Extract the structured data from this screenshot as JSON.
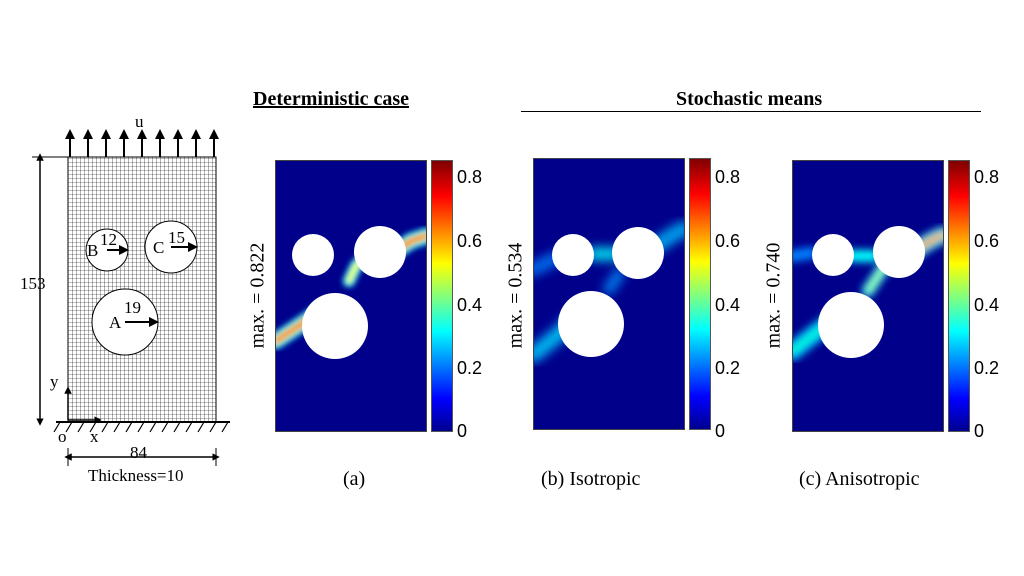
{
  "headers": {
    "deterministic": "Deterministic case",
    "stochastic": "Stochastic means"
  },
  "mesh": {
    "load_label": "u",
    "height": "153",
    "width": "84",
    "thickness": "Thickness=10",
    "origin": "o",
    "x_axis": "x",
    "y_axis": "y",
    "hole_A_label": "A",
    "hole_A_radius": "19",
    "hole_B_label": "B",
    "hole_B_radius": "12",
    "hole_C_label": "C",
    "hole_C_radius": "15"
  },
  "panels": [
    {
      "caption": "(a)",
      "max_label": "max. = 0.822",
      "max": 0.822
    },
    {
      "caption": "(b) Isotropic",
      "max_label": "max. = 0.534",
      "max": 0.534
    },
    {
      "caption": "(c) Anisotropic",
      "max_label": "max. = 0.740",
      "max": 0.74
    }
  ],
  "colorbar": {
    "ticks": [
      "0.8",
      "0.6",
      "0.4",
      "0.2",
      "0"
    ],
    "colormap": "jet"
  },
  "colors": {
    "background_field": "#00008b",
    "crack_core": "#ff2000",
    "crack_outer": "#00ffff"
  }
}
